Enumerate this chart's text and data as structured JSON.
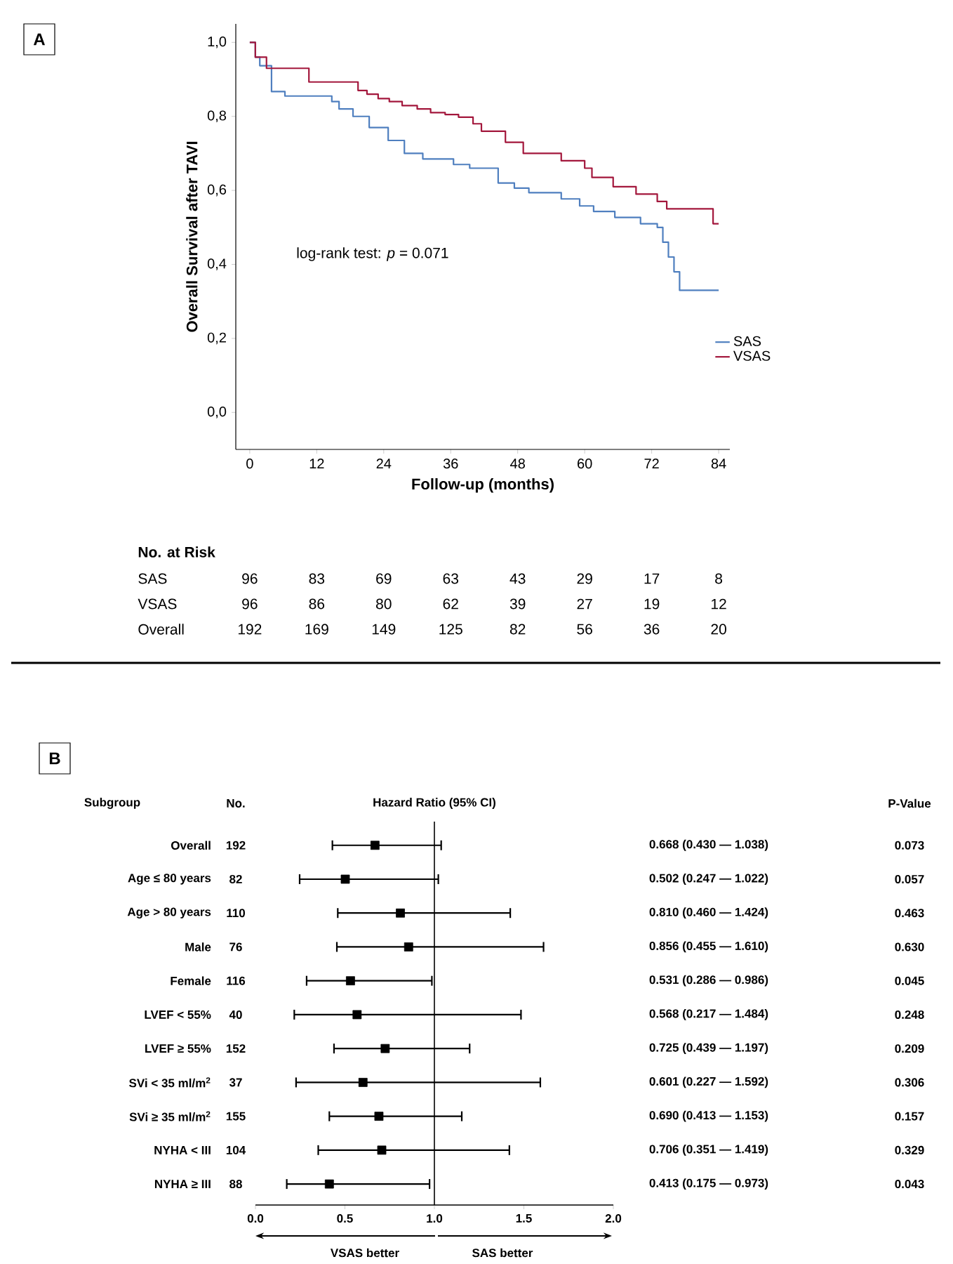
{
  "chart_data": [
    {
      "type": "step",
      "xlabel": "Follow-up (months)",
      "ylabel": "Overall Survival after TAVI",
      "xlim": [
        -2.5,
        86
      ],
      "ylim": [
        -0.1,
        1.05
      ],
      "xticks": [
        0,
        12,
        24,
        36,
        48,
        60,
        72,
        84
      ],
      "yticks": [
        {
          "value": 0,
          "label": "0,0"
        },
        {
          "value": 0.2,
          "label": "0,2"
        },
        {
          "value": 0.4,
          "label": "0,4"
        },
        {
          "value": 0.6,
          "label": "0,6"
        },
        {
          "value": 0.8,
          "label": "0,8"
        },
        {
          "value": 1.0,
          "label": "1,0"
        }
      ],
      "legend": "bottom right",
      "marker": "none",
      "series": [
        {
          "name": "SAS",
          "color": "#4f7fbf",
          "x": [
            0,
            1,
            1.8,
            3.9,
            6.3,
            14.7,
            16,
            18.5,
            21.4,
            24.8,
            27.7,
            31,
            36.5,
            39.4,
            44.5,
            47.4,
            50,
            55.8,
            59.1,
            61.6,
            65.4,
            70,
            73,
            74,
            75,
            76,
            77,
            84
          ],
          "values": [
            1.0,
            0.96,
            0.937,
            0.867,
            0.855,
            0.84,
            0.82,
            0.8,
            0.77,
            0.735,
            0.7,
            0.685,
            0.67,
            0.66,
            0.62,
            0.606,
            0.594,
            0.577,
            0.558,
            0.543,
            0.527,
            0.51,
            0.5,
            0.46,
            0.42,
            0.38,
            0.33,
            0.33
          ]
        },
        {
          "name": "VSAS",
          "color": "#a3173c",
          "x": [
            0,
            1,
            3,
            10.6,
            19.4,
            21,
            23,
            25,
            27.3,
            30,
            32.4,
            35,
            37.4,
            40,
            41.5,
            45.8,
            49,
            55.8,
            60,
            61.3,
            65.1,
            69.2,
            73,
            74.7,
            83,
            84
          ],
          "values": [
            1.0,
            0.96,
            0.93,
            0.893,
            0.87,
            0.86,
            0.848,
            0.84,
            0.829,
            0.82,
            0.81,
            0.805,
            0.798,
            0.78,
            0.76,
            0.73,
            0.7,
            0.68,
            0.66,
            0.635,
            0.61,
            0.59,
            0.57,
            0.55,
            0.51,
            0.51
          ]
        }
      ],
      "annotations": [
        "A",
        "log-rank test: *p* = 0.071",
        "No. at Risk",
        "SAS",
        "96",
        "83",
        "69",
        "63",
        "43",
        "29",
        "17",
        "8",
        "VSAS",
        "96",
        "86",
        "80",
        "62",
        "39",
        "27",
        "19",
        "12",
        "Overall",
        "192",
        "169",
        "149",
        "125",
        "82",
        "56",
        "36",
        "20"
      ]
    },
    {
      "type": "scatter",
      "orientation": "horizontal",
      "title": "Hazard Ratio (95% CI)",
      "color": "#000000",
      "marker": "square",
      "categories": [
        "Overall",
        "Age ≤ 80 years",
        "Age > 80 years",
        "Male",
        "Female",
        "LVEF < 55%",
        "LVEF ≥ 55%",
        "SVi < 35 ml/m$^{2}$",
        "SVi ≥ 35 ml/m$^{2}$",
        "NYHA < III",
        "NYHA ≥ III"
      ],
      "values": [
        0.668,
        0.502,
        0.81,
        0.856,
        0.531,
        0.568,
        0.725,
        0.601,
        0.69,
        0.706,
        0.413
      ],
      "errors": [
        [
          0.43,
          1.038
        ],
        [
          0.247,
          1.022
        ],
        [
          0.46,
          1.424
        ],
        [
          0.455,
          1.61
        ],
        [
          0.286,
          0.986
        ],
        [
          0.217,
          1.484
        ],
        [
          0.439,
          1.197
        ],
        [
          0.227,
          1.592
        ],
        [
          0.413,
          1.153
        ],
        [
          0.351,
          1.419
        ],
        [
          0.175,
          0.973
        ]
      ],
      "value_labels": [
        "0.668 (0.430 — 1.038)",
        "0.502 (0.247 — 1.022)",
        "0.810 (0.460 — 1.424)",
        "0.856 (0.455 — 1.610)",
        "0.531 (0.286 — 0.986)",
        "0.568 (0.217 — 1.484)",
        "0.725 (0.439 — 1.197)",
        "0.601 (0.227 — 1.592)",
        "0.690 (0.413 — 1.153)",
        "0.706 (0.351 — 1.419)",
        "0.413 (0.175 — 0.973)"
      ],
      "xlim": [
        0,
        2
      ],
      "xticks": [
        {
          "value": 0,
          "label": "0.0"
        },
        {
          "value": 0.5,
          "label": "0.5"
        },
        {
          "value": 1,
          "label": "1.0"
        },
        {
          "value": 1.5,
          "label": "1.5"
        },
        {
          "value": 2,
          "label": "2.0"
        }
      ],
      "ref_lines": [
        {
          "axis": "x",
          "value": 1
        }
      ],
      "annotations": [
        "B",
        "Subgroup",
        "No.",
        "P-Value",
        "VSAS better",
        "SAS better",
        "192",
        "82",
        "110",
        "76",
        "116",
        "40",
        "152",
        "37",
        "155",
        "104",
        "88",
        "0.073",
        "0.057",
        "0.463",
        "0.630",
        "0.045",
        "0.248",
        "0.209",
        "0.306",
        "0.157",
        "0.329",
        "0.043"
      ]
    }
  ]
}
